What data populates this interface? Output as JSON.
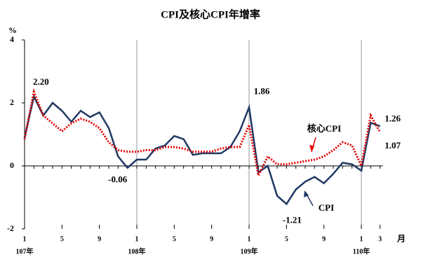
{
  "chart_data": {
    "type": "line",
    "title": "CPI及核心CPI年增率",
    "y_unit": "%",
    "x_unit": "月",
    "categories": [
      "1",
      null,
      null,
      null,
      "5",
      null,
      null,
      null,
      "9",
      null,
      null,
      null,
      "1",
      null,
      null,
      null,
      "5",
      null,
      null,
      null,
      "9",
      null,
      null,
      null,
      "1",
      null,
      null,
      null,
      "5",
      null,
      null,
      null,
      "9",
      null,
      null,
      null,
      "1",
      null,
      "3"
    ],
    "year_labels": [
      "107年",
      "108年",
      "109年",
      "110年"
    ],
    "ylim": [
      -2,
      4
    ],
    "yticks": [
      -2,
      0,
      2,
      4
    ],
    "series": [
      {
        "name": "CPI",
        "color": "#203864",
        "style": "solid",
        "values": [
          0.9,
          2.2,
          1.6,
          2.0,
          1.75,
          1.4,
          1.75,
          1.55,
          1.7,
          1.2,
          0.3,
          -0.06,
          0.2,
          0.2,
          0.55,
          0.65,
          0.95,
          0.85,
          0.35,
          0.4,
          0.4,
          0.4,
          0.6,
          1.1,
          1.86,
          -0.2,
          0.0,
          -0.95,
          -1.21,
          -0.75,
          -0.5,
          -0.35,
          -0.55,
          -0.25,
          0.1,
          0.05,
          -0.15,
          1.37,
          1.26
        ],
        "value_labels": [
          null,
          "2.20",
          null,
          null,
          null,
          null,
          null,
          null,
          null,
          null,
          null,
          "-0.06",
          null,
          null,
          null,
          null,
          null,
          null,
          null,
          null,
          null,
          null,
          null,
          null,
          "1.86",
          null,
          null,
          null,
          "-1.21",
          null,
          null,
          null,
          null,
          null,
          null,
          null,
          null,
          null,
          "1.26"
        ]
      },
      {
        "name": "核心CPI",
        "color": "#e60000",
        "style": "dotted",
        "values": [
          0.85,
          2.35,
          1.6,
          1.35,
          1.1,
          1.35,
          1.5,
          1.4,
          1.2,
          0.75,
          0.5,
          0.45,
          0.45,
          0.5,
          0.5,
          0.6,
          0.6,
          0.55,
          0.45,
          0.45,
          0.45,
          0.55,
          0.6,
          0.6,
          1.3,
          -0.3,
          0.3,
          0.05,
          0.05,
          0.1,
          0.15,
          0.2,
          0.3,
          0.5,
          0.75,
          0.65,
          0.0,
          1.6,
          1.07
        ],
        "value_labels": [
          null,
          null,
          null,
          null,
          null,
          null,
          null,
          null,
          null,
          null,
          null,
          null,
          null,
          null,
          null,
          null,
          null,
          null,
          null,
          null,
          null,
          null,
          null,
          null,
          null,
          null,
          null,
          null,
          null,
          null,
          null,
          null,
          null,
          null,
          null,
          null,
          null,
          null,
          "1.07"
        ]
      }
    ]
  }
}
